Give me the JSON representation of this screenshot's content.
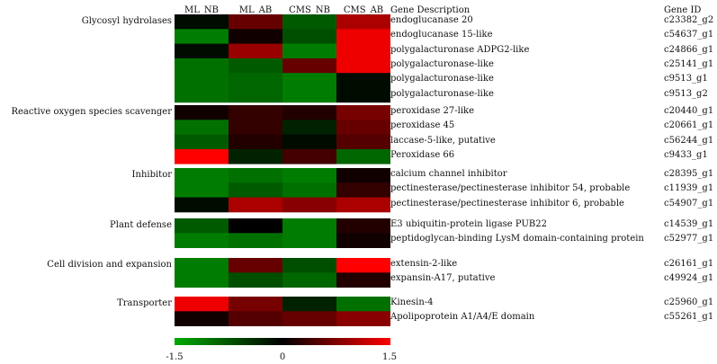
{
  "chart_data": {
    "type": "heatmap",
    "columns": [
      "ML_NB",
      "ML_AB",
      "CMS_NB",
      "CMS_AB"
    ],
    "header_description": "Gene Description",
    "header_id": "Gene ID",
    "groups": [
      {
        "name": "Glycosyl hydrolases",
        "rows": [
          {
            "description": "endoglucanase 20",
            "id": "c23382_g2",
            "values": [
              -0.1,
              0.6,
              -0.8,
              1.0
            ]
          },
          {
            "description": "endoglucanase 15-like",
            "id": "c54637_g1",
            "values": [
              -1.1,
              0.1,
              -0.7,
              1.4
            ]
          },
          {
            "description": "polygalacturonase ADPG2-like",
            "id": "c24866_g1",
            "values": [
              -0.1,
              0.9,
              -1.1,
              1.4
            ]
          },
          {
            "description": "polygalacturonase-like",
            "id": "c25141_g1",
            "values": [
              -1.0,
              -0.8,
              0.6,
              1.4
            ]
          },
          {
            "description": "polygalacturonase-like",
            "id": "c9513_g1",
            "values": [
              -1.0,
              -0.9,
              -1.1,
              -0.1
            ]
          },
          {
            "description": "polygalacturonase-like",
            "id": "c9513_g2",
            "values": [
              -1.0,
              -0.9,
              -1.1,
              -0.1
            ]
          }
        ]
      },
      {
        "name": "Reactive oxygen species scavenger",
        "rows": [
          {
            "description": "peroxidase 27-like",
            "id": "c20440_g1",
            "values": [
              0.1,
              0.3,
              0.2,
              0.7
            ]
          },
          {
            "description": "peroxidase 45",
            "id": "c20661_g1",
            "values": [
              -1.0,
              0.3,
              -0.3,
              0.6
            ]
          },
          {
            "description": "laccase-5-like, putative",
            "id": "c56244_g1",
            "values": [
              -0.8,
              0.2,
              -0.1,
              0.5
            ]
          },
          {
            "description": "Peroxidase 66",
            "id": "c9433_g1",
            "values": [
              1.5,
              -0.3,
              0.4,
              -0.9
            ]
          }
        ]
      },
      {
        "name": "Inhibitor",
        "rows": [
          {
            "description": "calcium channel inhibitor",
            "id": "c28395_g1",
            "values": [
              -1.1,
              -1.0,
              -1.1,
              0.1
            ]
          },
          {
            "description": "pectinesterase/pectinesterase inhibitor 54, probable",
            "id": "c11939_g1",
            "values": [
              -1.1,
              -0.8,
              -1.0,
              0.3
            ]
          },
          {
            "description": "pectinesterase/pectinesterase inhibitor 6, probable",
            "id": "c54907_g1",
            "values": [
              -0.1,
              1.0,
              0.8,
              1.0
            ]
          }
        ]
      },
      {
        "name": "Plant defense",
        "rows": [
          {
            "description": "E3 ubiquitin-protein ligase PUB22",
            "id": "c14539_g1",
            "values": [
              -0.8,
              0.0,
              -1.1,
              0.2
            ]
          },
          {
            "description": "peptidoglycan-binding LysM domain-containing protein",
            "id": "c52977_g1",
            "values": [
              -1.1,
              -1.0,
              -1.1,
              0.1
            ]
          }
        ]
      },
      {
        "name": "Cell division and expansion",
        "rows": [
          {
            "description": "extensin-2-like",
            "id": "c26161_g1",
            "values": [
              -1.1,
              0.6,
              -0.7,
              1.5
            ]
          },
          {
            "description": "expansin-A17, putative",
            "id": "c49924_g1",
            "values": [
              -1.1,
              -0.7,
              -0.9,
              0.2
            ]
          }
        ]
      },
      {
        "name": "Transporter",
        "rows": [
          {
            "description": "Kinesin-4",
            "id": "c25960_g1",
            "values": [
              1.4,
              0.7,
              -0.3,
              -1.0
            ]
          },
          {
            "description": "Apolipoprotein A1/A4/E domain",
            "id": "c55261_g1",
            "values": [
              0.1,
              0.5,
              0.6,
              0.8
            ]
          }
        ]
      }
    ],
    "colorbar": {
      "min": -1.5,
      "max": 1.5,
      "ticks": [
        -1.5,
        0,
        1.5
      ],
      "tick_labels": [
        "-1.5",
        "0",
        "1.5"
      ],
      "low_color": "#00aa00",
      "mid_color": "#000000",
      "high_color": "#ff0000"
    },
    "grid": false
  }
}
